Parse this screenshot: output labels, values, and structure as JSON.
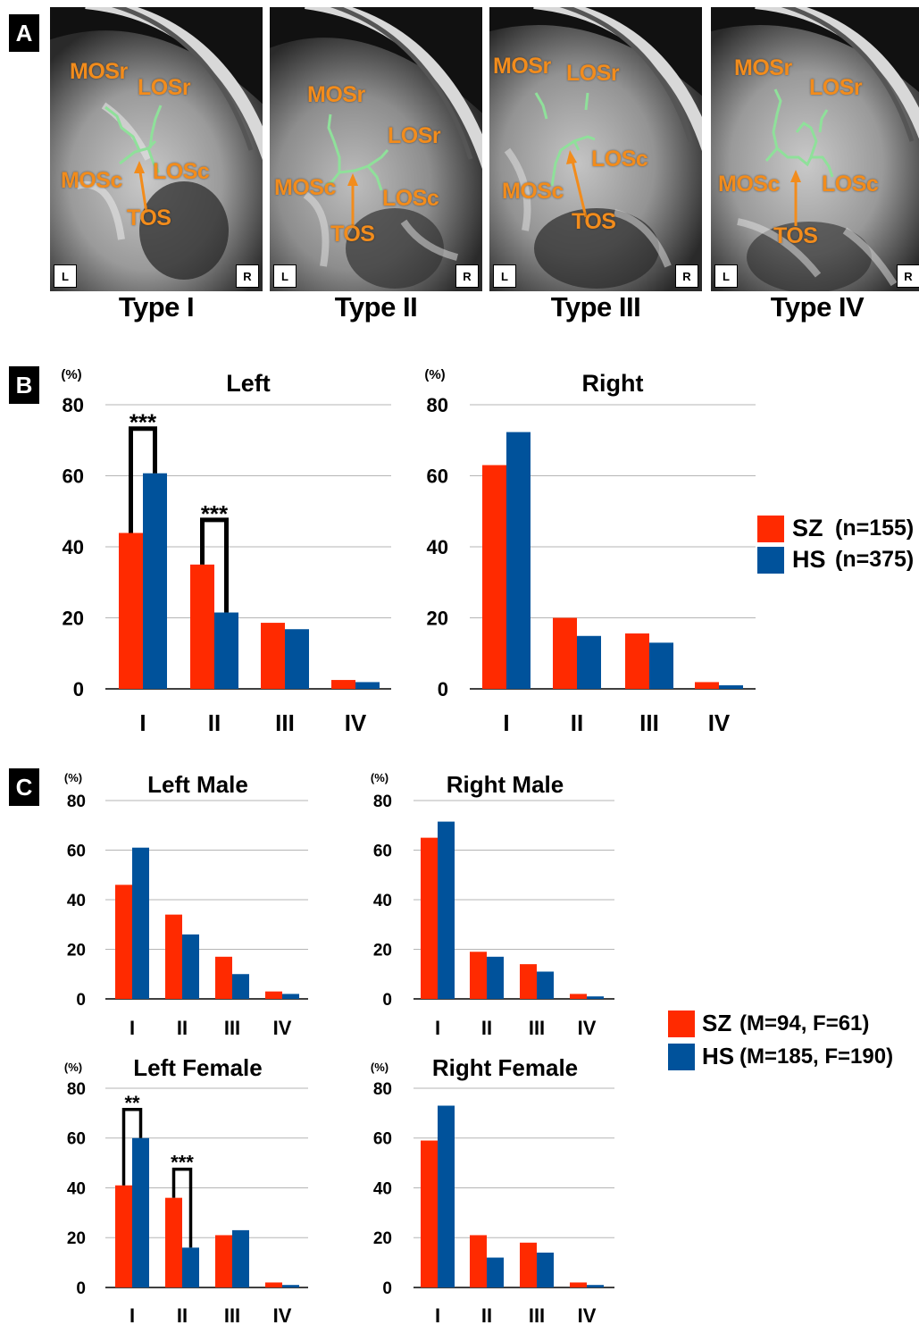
{
  "panels": {
    "a": {
      "letter": "A",
      "images": [
        {
          "type_label": "Type I",
          "corner_left": "L",
          "corner_right": "R",
          "labels": {
            "mosr": "MOSr",
            "losr": "LOSr",
            "mosc": "MOSc",
            "losc": "LOSc",
            "tos": "TOS"
          }
        },
        {
          "type_label": "Type II",
          "corner_left": "L",
          "corner_right": "R",
          "labels": {
            "mosr": "MOSr",
            "losr": "LOSr",
            "mosc": "MOSc",
            "losc": "LOSc",
            "tos": "TOS"
          }
        },
        {
          "type_label": "Type III",
          "corner_left": "L",
          "corner_right": "R",
          "labels": {
            "mosr": "MOSr",
            "losr": "LOSr",
            "mosc": "MOSc",
            "losc": "LOSc",
            "tos": "TOS"
          }
        },
        {
          "type_label": "Type IV",
          "corner_left": "L",
          "corner_right": "R",
          "labels": {
            "mosr": "MOSr",
            "losr": "LOSr",
            "mosc": "MOSc",
            "losc": "LOSc",
            "tos": "TOS"
          }
        }
      ]
    },
    "b": {
      "letter": "B"
    },
    "c": {
      "letter": "C"
    }
  },
  "colors": {
    "sz": "#ff2a00",
    "hs": "#00529b",
    "sulcus": "#8fe09a",
    "label": "#f28c1c"
  },
  "legend_b": {
    "sz_label": "SZ",
    "sz_n": "(n=155)",
    "hs_label": "HS",
    "hs_n": "(n=375)"
  },
  "legend_c": {
    "sz_label": "SZ",
    "sz_n": "(M=94, F=61)",
    "hs_label": "HS",
    "hs_n": "(M=185, F=190)"
  },
  "chart_data": [
    {
      "id": "b-left",
      "type": "bar",
      "title": "Left",
      "ylabel": "(%)",
      "ylim": [
        0,
        80
      ],
      "yticks": [
        0,
        20,
        40,
        60,
        80
      ],
      "categories": [
        "I",
        "II",
        "III",
        "IV"
      ],
      "series": [
        {
          "name": "SZ",
          "values": [
            43.9,
            35.0,
            18.6,
            2.5
          ]
        },
        {
          "name": "HS",
          "values": [
            60.7,
            21.5,
            16.8,
            1.9
          ]
        }
      ],
      "significance": [
        {
          "category": "I",
          "label": "***"
        },
        {
          "category": "II",
          "label": "***"
        }
      ]
    },
    {
      "id": "b-right",
      "type": "bar",
      "title": "Right",
      "ylabel": "(%)",
      "ylim": [
        0,
        80
      ],
      "yticks": [
        0,
        20,
        40,
        60,
        80
      ],
      "categories": [
        "I",
        "II",
        "III",
        "IV"
      ],
      "series": [
        {
          "name": "SZ",
          "values": [
            63.0,
            20.0,
            15.6,
            1.9
          ]
        },
        {
          "name": "HS",
          "values": [
            72.3,
            14.9,
            13.0,
            1.0
          ]
        }
      ],
      "significance": []
    },
    {
      "id": "c-left-male",
      "type": "bar",
      "title": "Left Male",
      "ylabel": "(%)",
      "ylim": [
        0,
        80
      ],
      "yticks": [
        0,
        20,
        40,
        60,
        80
      ],
      "categories": [
        "I",
        "II",
        "III",
        "IV"
      ],
      "series": [
        {
          "name": "SZ",
          "values": [
            46.0,
            34.0,
            17.0,
            3.0
          ]
        },
        {
          "name": "HS",
          "values": [
            61.0,
            26.0,
            10.0,
            2.0
          ]
        }
      ],
      "significance": []
    },
    {
      "id": "c-right-male",
      "type": "bar",
      "title": "Right Male",
      "ylabel": "(%)",
      "ylim": [
        0,
        80
      ],
      "yticks": [
        0,
        20,
        40,
        60,
        80
      ],
      "categories": [
        "I",
        "II",
        "III",
        "IV"
      ],
      "series": [
        {
          "name": "SZ",
          "values": [
            65.0,
            19.0,
            14.0,
            2.0
          ]
        },
        {
          "name": "HS",
          "values": [
            71.5,
            17.0,
            11.0,
            1.0
          ]
        }
      ],
      "significance": []
    },
    {
      "id": "c-left-female",
      "type": "bar",
      "title": "Left Female",
      "ylabel": "(%)",
      "ylim": [
        0,
        80
      ],
      "yticks": [
        0,
        20,
        40,
        60,
        80
      ],
      "categories": [
        "I",
        "II",
        "III",
        "IV"
      ],
      "series": [
        {
          "name": "SZ",
          "values": [
            41.0,
            36.0,
            21.0,
            2.0
          ]
        },
        {
          "name": "HS",
          "values": [
            60.0,
            16.0,
            23.0,
            1.0
          ]
        }
      ],
      "significance": [
        {
          "category": "I",
          "label": "**"
        },
        {
          "category": "II",
          "label": "***"
        }
      ]
    },
    {
      "id": "c-right-female",
      "type": "bar",
      "title": "Right Female",
      "ylabel": "(%)",
      "ylim": [
        0,
        80
      ],
      "yticks": [
        0,
        20,
        40,
        60,
        80
      ],
      "categories": [
        "I",
        "II",
        "III",
        "IV"
      ],
      "series": [
        {
          "name": "SZ",
          "values": [
            59.0,
            21.0,
            18.0,
            2.0
          ]
        },
        {
          "name": "HS",
          "values": [
            73.0,
            12.0,
            14.0,
            1.0
          ]
        }
      ],
      "significance": []
    }
  ]
}
